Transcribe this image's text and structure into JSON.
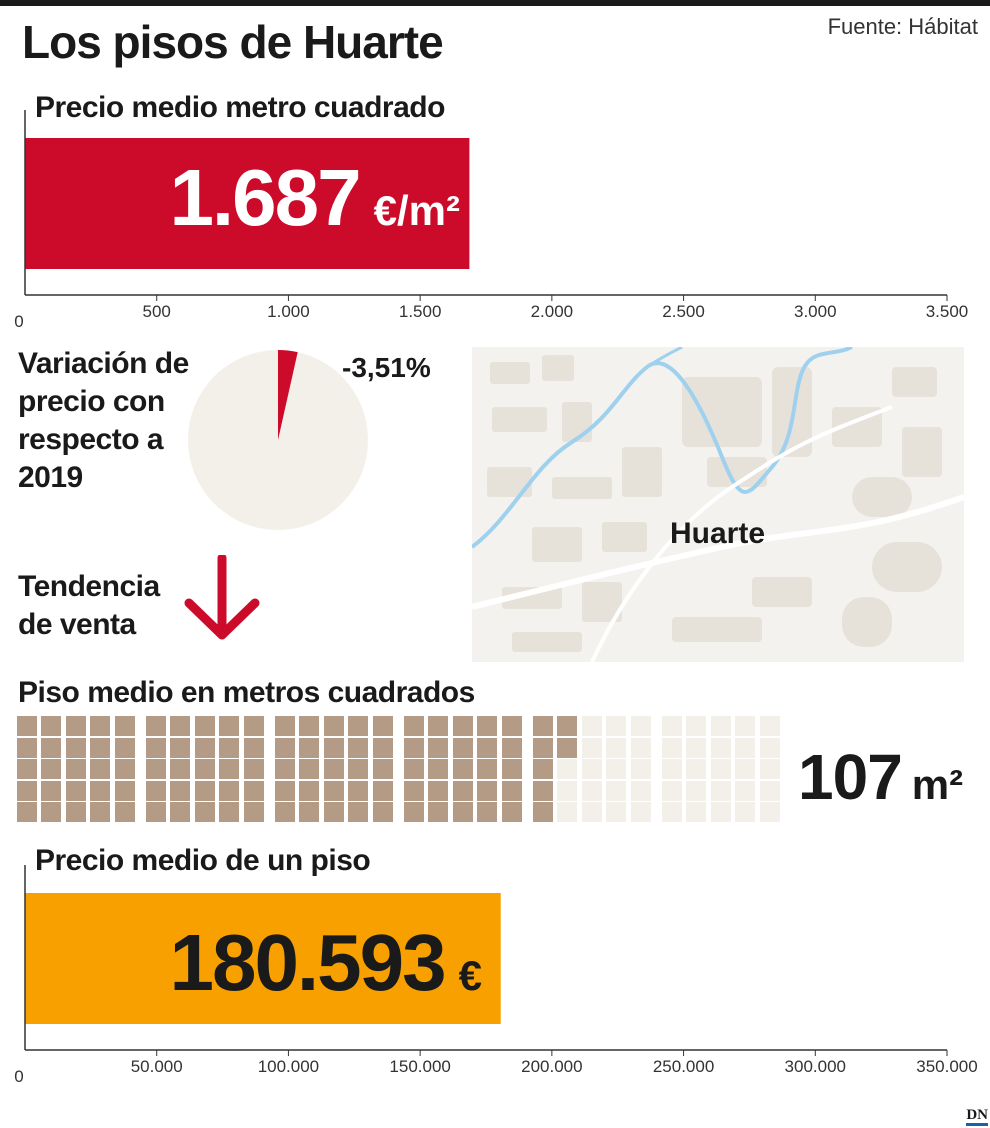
{
  "title": "Los pisos de Huarte",
  "source": "Fuente: Hábitat",
  "logo": "DN",
  "colors": {
    "price_bar": "#cc0a2a",
    "flat_bar": "#f7a000",
    "pie_bg": "#f3efe9",
    "waffle_filled": "#b49b85",
    "waffle_empty": "#f3efe9",
    "arrow": "#cc0a2a"
  },
  "section_price_sqm": {
    "title": "Precio medio metro cuadrado",
    "value": "1.687",
    "unit": "€/m²"
  },
  "section_variation": {
    "label_lines": [
      "Variación de",
      "precio con",
      "respecto a",
      "2019"
    ],
    "value_label": "-3,51%"
  },
  "section_trend": {
    "label_lines": [
      "Tendencia",
      "de venta"
    ],
    "icon": "arrow-down-icon"
  },
  "map": {
    "label": "Huarte"
  },
  "section_area": {
    "title": "Piso medio en metros cuadrados",
    "value": "107",
    "unit": "m²"
  },
  "section_flat_price": {
    "title": "Precio medio de un piso",
    "value": "180.593",
    "unit": "€"
  },
  "chart_data": [
    {
      "type": "bar",
      "orientation": "horizontal",
      "title": "Precio medio metro cuadrado",
      "values": [
        1687
      ],
      "unit": "€/m²",
      "xlim": [
        0,
        3500
      ],
      "ticks": [
        0,
        500,
        1000,
        1500,
        2000,
        2500,
        3000,
        3500
      ],
      "tick_labels": [
        "0",
        "500",
        "1.000",
        "1.500",
        "2.000",
        "2.500",
        "3.000",
        "3.500"
      ]
    },
    {
      "type": "pie",
      "values": [
        3.51
      ],
      "labels": [
        "-3,51%"
      ],
      "unit": "%"
    },
    {
      "type": "waffle",
      "title": "Piso medio en metros cuadrados",
      "value": 107,
      "total": 150,
      "unit": "m²"
    },
    {
      "type": "bar",
      "orientation": "horizontal",
      "title": "Precio medio de un piso",
      "values": [
        180593
      ],
      "unit": "€",
      "xlim": [
        0,
        350000
      ],
      "ticks": [
        0,
        50000,
        100000,
        150000,
        200000,
        250000,
        300000,
        350000
      ],
      "tick_labels": [
        "0",
        "50.000",
        "100.000",
        "150.000",
        "200.000",
        "250.000",
        "300.000",
        "350.000"
      ]
    }
  ]
}
